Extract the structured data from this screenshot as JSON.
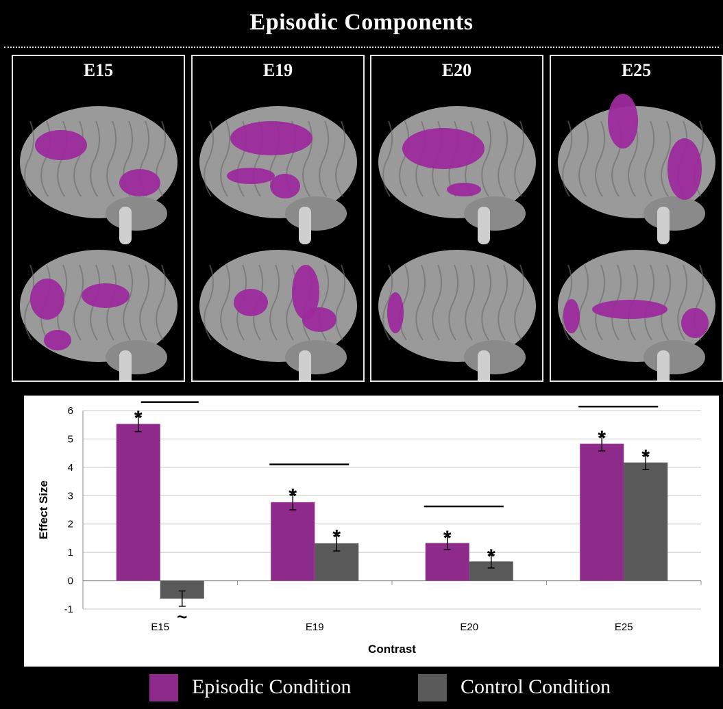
{
  "figure": {
    "title": "Episodic Components"
  },
  "panels": [
    {
      "label": "E15"
    },
    {
      "label": "E19"
    },
    {
      "label": "E20"
    },
    {
      "label": "E25"
    }
  ],
  "colors": {
    "episodic": "#8e2b8a",
    "control": "#595959",
    "brain_tissue": "#9a9a9a",
    "activation": "#9c2a9c"
  },
  "chart_data": {
    "type": "bar",
    "xlabel": "Contrast",
    "ylabel": "Effect Size",
    "ylim": [
      -1,
      6
    ],
    "yticks": [
      "-1",
      "0",
      "1",
      "2",
      "3",
      "4",
      "5",
      "6"
    ],
    "categories": [
      "E15",
      "E19",
      "E20",
      "E25"
    ],
    "grid": true,
    "legend_position": "bottom",
    "series": [
      {
        "name": "Episodic Condition",
        "values": [
          5.53,
          2.77,
          1.33,
          4.83
        ],
        "errors": [
          0.27,
          0.27,
          0.23,
          0.25
        ],
        "markers": [
          "*",
          "*",
          "*",
          "*"
        ]
      },
      {
        "name": "Control Condition",
        "values": [
          -0.63,
          1.32,
          0.68,
          4.17
        ],
        "errors": [
          0.27,
          0.27,
          0.23,
          0.25
        ],
        "markers": [
          "~",
          "*",
          "*",
          "*"
        ]
      }
    ]
  }
}
